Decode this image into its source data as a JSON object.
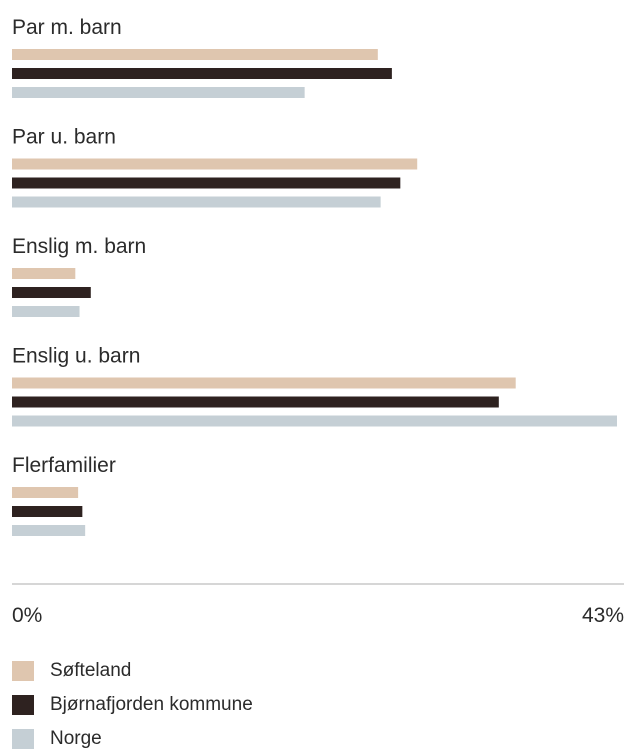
{
  "chart_data": {
    "type": "bar",
    "orientation": "horizontal",
    "categories": [
      "Par m. barn",
      "Par u. barn",
      "Enslig m. barn",
      "Enslig u. barn",
      "Flerfamilier"
    ],
    "series": [
      {
        "name": "Søfteland",
        "color": "#dfc6af",
        "values": [
          26.0,
          28.8,
          4.5,
          35.8,
          4.7
        ]
      },
      {
        "name": "Bjørnafjorden kommune",
        "color": "#2e2220",
        "values": [
          27.0,
          27.6,
          5.6,
          34.6,
          5.0
        ]
      },
      {
        "name": "Norge",
        "color": "#c5cfd5",
        "values": [
          20.8,
          26.2,
          4.8,
          43.0,
          5.2
        ]
      }
    ],
    "xlim": [
      0,
      43
    ],
    "tick_labels": [
      "0%",
      "43%"
    ],
    "legend_position": "bottom-left"
  }
}
